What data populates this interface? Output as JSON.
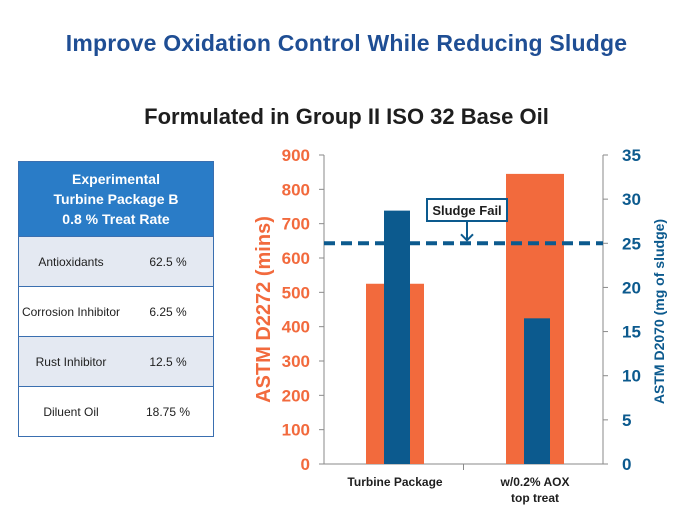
{
  "title": "Improve Oxidation Control While Reducing Sludge",
  "subtitle": "Formulated in Group II ISO 32 Base Oil",
  "table": {
    "header": [
      "Experimental",
      "Turbine Package B",
      "0.8 % Treat Rate"
    ],
    "rows": [
      {
        "name": "Antioxidants",
        "value": "62.5 %"
      },
      {
        "name": "Corrosion Inhibitor",
        "value": "6.25 %"
      },
      {
        "name": "Rust Inhibitor",
        "value": "12.5 %"
      },
      {
        "name": "Diluent Oil",
        "value": "18.75 %"
      }
    ]
  },
  "colors": {
    "title": "#1f4e94",
    "orange": "#f26a3d",
    "blue": "#0c5a8e",
    "table_header": "#2a7cc7"
  },
  "chart_data": {
    "type": "bar",
    "categories": [
      "Turbine Package",
      "w/0.2% AOX top treat"
    ],
    "category_label_lines": [
      [
        "Turbine Package"
      ],
      [
        "w/0.2% AOX",
        "top treat"
      ]
    ],
    "series": [
      {
        "values": [
          525,
          845
        ],
        "axis": "left",
        "color": "#f26a3d"
      },
      {
        "values": [
          28.7,
          16.5
        ],
        "axis": "right",
        "color": "#0c5a8e"
      }
    ],
    "ylabel": "ASTM D2272 (mins)",
    "ylabel_right": "ASTM D2070 (mg of sludge)",
    "ylim": [
      0,
      900
    ],
    "yticks": [
      0,
      100,
      200,
      300,
      400,
      500,
      600,
      700,
      800,
      900
    ],
    "ylim_right": [
      0,
      35
    ],
    "yticks_right": [
      0,
      5,
      10,
      15,
      20,
      25,
      30,
      35
    ],
    "reference_line": {
      "label": "Sludge Fail",
      "value": 25,
      "axis": "right",
      "style": "dashed"
    },
    "grid": false,
    "legend": "none"
  }
}
